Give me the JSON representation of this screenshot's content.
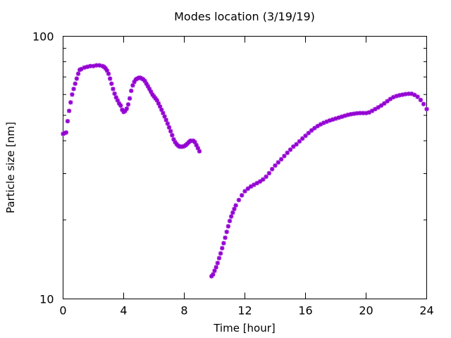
{
  "chart_data": {
    "type": "scatter",
    "title": "Modes location (3/19/19)",
    "xlabel": "Time [hour]",
    "ylabel": "Particle size [nm]",
    "xlim": [
      0,
      24
    ],
    "ylim": [
      10,
      100
    ],
    "yscale": "log",
    "xticks": [
      "0",
      "4",
      "8",
      "12",
      "16",
      "20",
      "24"
    ],
    "yticks": [
      "10",
      "100"
    ],
    "grid": false,
    "legend": "none",
    "marker_color": "#9400d3",
    "series": [
      {
        "x": [
          0.0,
          0.1,
          0.2,
          0.3,
          0.4,
          0.5,
          0.6,
          0.7,
          0.8,
          0.9,
          1.0,
          1.1,
          1.2,
          1.4,
          1.6,
          1.8,
          2.0,
          2.2,
          2.4,
          2.6,
          2.7,
          2.8,
          2.9,
          3.0,
          3.1,
          3.2,
          3.3,
          3.4,
          3.5,
          3.6,
          3.7,
          3.8,
          3.9,
          4.0,
          4.1,
          4.2,
          4.3,
          4.4,
          4.5,
          4.6,
          4.7,
          4.8,
          4.9,
          5.0,
          5.1,
          5.2,
          5.3,
          5.4,
          5.5,
          5.6,
          5.7,
          5.8,
          5.9,
          6.0,
          6.1,
          6.2,
          6.3,
          6.4,
          6.5,
          6.6,
          6.7,
          6.8,
          6.9,
          7.0,
          7.1,
          7.2,
          7.3,
          7.4,
          7.5,
          7.6,
          7.7,
          7.8,
          7.9,
          8.0,
          8.1,
          8.2,
          8.3,
          8.4,
          8.5,
          8.6,
          8.7,
          8.8,
          8.9,
          9.0
        ],
        "y": [
          42.5,
          42.8,
          43,
          47.5,
          52,
          56,
          60,
          63,
          66,
          69,
          72,
          74.5,
          75,
          76,
          76.5,
          77,
          77,
          77.5,
          77.5,
          77,
          76.5,
          75.5,
          74,
          72,
          69,
          66,
          63,
          60.5,
          58.5,
          57,
          55.5,
          54.5,
          52.5,
          51.5,
          52,
          53,
          55,
          58,
          62,
          65,
          67,
          68.5,
          69,
          69.5,
          69.5,
          69,
          68.5,
          67.5,
          66,
          64.5,
          63,
          61.5,
          60,
          59,
          58,
          57,
          55.5,
          54,
          52.5,
          51,
          49.5,
          48,
          46.5,
          45,
          43.5,
          42,
          40.5,
          39.5,
          38.8,
          38.3,
          38,
          38,
          38,
          38.2,
          38.5,
          39,
          39.5,
          40,
          40,
          40,
          39.5,
          38.5,
          37.5,
          36.5
        ]
      },
      {
        "x": [
          9.8,
          9.9,
          10.0,
          10.1,
          10.2,
          10.3,
          10.4,
          10.5,
          10.6,
          10.7,
          10.8,
          10.9,
          11.0,
          11.1,
          11.2,
          11.3,
          11.4,
          11.6,
          11.8,
          12.0,
          12.2,
          12.4,
          12.6,
          12.8,
          13.0,
          13.2,
          13.4,
          13.6,
          13.8,
          14.0,
          14.2,
          14.4,
          14.6,
          14.8,
          15.0,
          15.2,
          15.4,
          15.6,
          15.8,
          16.0,
          16.2,
          16.4,
          16.6,
          16.8,
          17.0,
          17.2,
          17.4,
          17.6,
          17.8,
          18.0,
          18.2,
          18.4,
          18.6,
          18.8,
          19.0,
          19.2,
          19.4,
          19.6,
          19.8,
          20.0,
          20.2,
          20.4,
          20.6,
          20.8,
          21.0,
          21.2,
          21.4,
          21.6,
          21.8,
          22.0,
          22.2,
          22.4,
          22.6,
          22.8,
          23.0,
          23.2,
          23.4,
          23.6,
          23.8,
          24.0
        ],
        "y": [
          12.2,
          12.4,
          12.8,
          13.2,
          13.7,
          14.3,
          14.9,
          15.6,
          16.3,
          17.1,
          18,
          18.9,
          19.8,
          20.6,
          21.3,
          22,
          22.7,
          23.8,
          24.8,
          25.7,
          26.3,
          26.8,
          27.2,
          27.6,
          28,
          28.5,
          29.2,
          30.1,
          31.2,
          32.2,
          33.1,
          34,
          35,
          36,
          37,
          38,
          38.8,
          39.8,
          40.8,
          41.8,
          42.8,
          43.8,
          44.7,
          45.5,
          46.2,
          46.8,
          47.3,
          47.8,
          48.2,
          48.6,
          49,
          49.4,
          49.8,
          50.2,
          50.5,
          50.7,
          50.9,
          51,
          51,
          51,
          51.3,
          52,
          52.8,
          53.6,
          54.5,
          55.5,
          56.6,
          57.7,
          58.6,
          59.2,
          59.6,
          59.9,
          60.2,
          60.4,
          60.4,
          59.8,
          58.8,
          57.2,
          55.2,
          52.8
        ]
      }
    ]
  }
}
